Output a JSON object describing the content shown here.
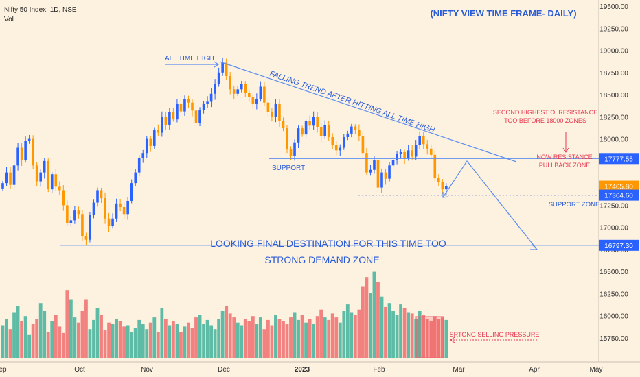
{
  "chart_data": {
    "type": "candlestick",
    "symbol_label": "Nifty 50 Index, 1D, NSE",
    "indicator_label": "Vol",
    "title": "(NIFTY VIEW TIME FRAME- DAILY)",
    "ylim": [
      15550,
      19600
    ],
    "y_ticks": [
      "19500.00",
      "19250.00",
      "19000.00",
      "18750.00",
      "18500.00",
      "18250.00",
      "18000.00",
      "17750.00",
      "17500.00",
      "17250.00",
      "17000.00",
      "16750.00",
      "16500.00",
      "16250.00",
      "16000.00",
      "15750.00"
    ],
    "x_ticks": [
      "ep",
      "Oct",
      "Nov",
      "Dec",
      "2023",
      "Feb",
      "Mar",
      "Apr",
      "May"
    ],
    "price_tags": [
      {
        "label": "17777.55",
        "value": 17777.55,
        "color": "#2962ff"
      },
      {
        "label": "17465.80",
        "value": 17465.8,
        "color": "#ff9800"
      },
      {
        "label": "17364.60",
        "value": 17364.6,
        "color": "#2962ff"
      },
      {
        "label": "16797.30",
        "value": 16797.3,
        "color": "#2962ff"
      }
    ],
    "annotations": {
      "all_time_high": "ALL TIME HIGH",
      "falling_trend": "FALLING TREND AFTER HITTING ALL TIME HIGH",
      "support": "SUPPORT",
      "second_oi_line1": "SECOND HIGHEST OI RESISTANCE",
      "second_oi_line2": "TOO BEFORE 18000 ZONES",
      "now_resistance_line1": "NOW RESISTANCE",
      "now_resistance_line2": "PULLBACK ZONE",
      "support_zone": "SUPPORT ZONE",
      "final_destination": "LOOKING FINAL DESTINATION FOR THIS TIME TOO",
      "strong_demand": "STRONG DEMAND ZONE",
      "selling_pressure": "SRTONG SELLING PRESSURE"
    },
    "levels": {
      "support": 17777.55,
      "support_zone": 17364.6,
      "demand_zone": 16797.3,
      "all_time_high": 18887
    },
    "candle_closes": [
      17500,
      17620,
      17480,
      17700,
      17900,
      17760,
      17980,
      18000,
      17700,
      17520,
      17620,
      17750,
      17430,
      17600,
      17460,
      17420,
      17250,
      17050,
      17080,
      17190,
      17150,
      16900,
      16860,
      17140,
      17280,
      17420,
      17330,
      17100,
      17020,
      17100,
      17270,
      17230,
      17150,
      17300,
      17500,
      17620,
      17780,
      17840,
      18000,
      17920,
      18100,
      18070,
      18250,
      18160,
      18300,
      18220,
      18400,
      18310,
      18450,
      18410,
      18320,
      18180,
      18330,
      18400,
      18420,
      18510,
      18620,
      18750,
      18860,
      18710,
      18560,
      18510,
      18560,
      18620,
      18520,
      18470,
      18400,
      18450,
      18590,
      18410,
      18300,
      18250,
      18400,
      18200,
      18120,
      17880,
      17810,
      17960,
      18120,
      18050,
      18200,
      18150,
      18250,
      18130,
      18030,
      18160,
      18020,
      17930,
      17870,
      17900,
      18020,
      18060,
      18140,
      18100,
      18030,
      17840,
      17620,
      17650,
      17760,
      17450,
      17620,
      17550,
      17700,
      17760,
      17830,
      17850,
      17780,
      17870,
      17800,
      17930,
      18030,
      17940,
      17890,
      17820,
      17560,
      17510,
      17430,
      17465.8
    ],
    "volume_bars": [
      0.25,
      0.3,
      0.22,
      0.35,
      0.4,
      0.28,
      0.32,
      0.18,
      0.26,
      0.3,
      0.42,
      0.36,
      0.2,
      0.28,
      0.33,
      0.24,
      0.19,
      0.52,
      0.45,
      0.31,
      0.27,
      0.36,
      0.45,
      0.22,
      0.29,
      0.38,
      0.33,
      0.21,
      0.27,
      0.26,
      0.3,
      0.28,
      0.24,
      0.25,
      0.2,
      0.23,
      0.29,
      0.26,
      0.22,
      0.27,
      0.31,
      0.2,
      0.38,
      0.3,
      0.25,
      0.28,
      0.26,
      0.2,
      0.24,
      0.27,
      0.23,
      0.31,
      0.33,
      0.26,
      0.29,
      0.25,
      0.22,
      0.3,
      0.36,
      0.4,
      0.34,
      0.31,
      0.27,
      0.25,
      0.3,
      0.28,
      0.32,
      0.26,
      0.31,
      0.22,
      0.29,
      0.25,
      0.33,
      0.3,
      0.28,
      0.26,
      0.31,
      0.35,
      0.29,
      0.33,
      0.27,
      0.3,
      0.26,
      0.32,
      0.37,
      0.31,
      0.29,
      0.34,
      0.31,
      0.27,
      0.36,
      0.41,
      0.35,
      0.33,
      0.37,
      0.55,
      0.62,
      0.5,
      0.66,
      0.58,
      0.47,
      0.39,
      0.42,
      0.36,
      0.33,
      0.41,
      0.38,
      0.35,
      0.34,
      0.3,
      0.36,
      0.33,
      0.3,
      0.28,
      0.32,
      0.3,
      0.31,
      0.29
    ]
  }
}
